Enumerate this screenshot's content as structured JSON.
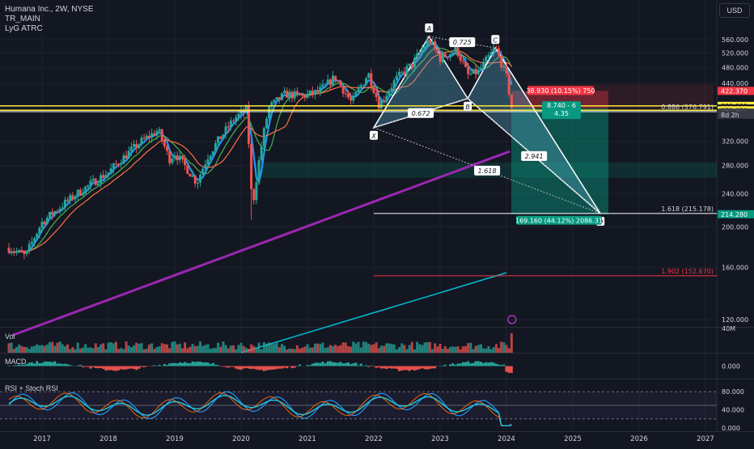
{
  "header": {
    "symbol_line": "Humana Inc., 2W, NYSE",
    "indicator_1": "TR_MAIN",
    "indicator_2": "LyG ATRC",
    "currency": "USD"
  },
  "panes": {
    "volume_label": "Vol",
    "macd_label": "MACD",
    "rsi_label": "RSI + Stoch RSI"
  },
  "colors": {
    "background": "#131722",
    "grid": "#1e222d",
    "candle_up": "#26a69a",
    "candle_down": "#ef5350",
    "ema_fast": "#2196f3",
    "ema_mid": "#4caf50",
    "ema_slow": "#ff7043",
    "ma_long": "#9c27b0",
    "ma_very_long": "#00bcd4",
    "pattern_fill": "#5aa8c8",
    "level_yellow": "#ffeb3b",
    "stop_red": "#f23645",
    "target_green": "#089981"
  },
  "chart_data": {
    "type": "candlestick",
    "title": "Humana Inc., 2W, NYSE",
    "x_axis": {
      "type": "date",
      "tick_labels": [
        "2017",
        "2018",
        "2019",
        "2020",
        "2021",
        "2022",
        "2023",
        "2024",
        "2025",
        "2026",
        "2027"
      ],
      "range": [
        "2016-07",
        "2027-02"
      ]
    },
    "y_axis": {
      "scale": "log",
      "range": [
        110,
        620
      ],
      "tick_labels": [
        "120.000",
        "160.000",
        "200.000",
        "240.000",
        "280.000",
        "320.000",
        "440.000",
        "480.000",
        "520.000",
        "560.000"
      ],
      "tick_values": [
        120,
        160,
        200,
        240,
        280,
        320,
        440,
        480,
        520,
        560
      ]
    },
    "price_path": [
      {
        "date": "2016-07",
        "price": 178
      },
      {
        "date": "2016-10",
        "price": 170
      },
      {
        "date": "2017-01",
        "price": 205
      },
      {
        "date": "2017-07",
        "price": 238
      },
      {
        "date": "2018-01",
        "price": 270
      },
      {
        "date": "2018-07",
        "price": 320
      },
      {
        "date": "2018-10",
        "price": 340
      },
      {
        "date": "2018-12",
        "price": 290
      },
      {
        "date": "2019-01",
        "price": 300
      },
      {
        "date": "2019-05",
        "price": 255
      },
      {
        "date": "2019-07",
        "price": 295
      },
      {
        "date": "2019-12",
        "price": 365
      },
      {
        "date": "2020-02",
        "price": 380
      },
      {
        "date": "2020-03",
        "price": 218
      },
      {
        "date": "2020-06",
        "price": 385
      },
      {
        "date": "2020-09",
        "price": 415
      },
      {
        "date": "2020-12",
        "price": 410
      },
      {
        "date": "2021-03",
        "price": 420
      },
      {
        "date": "2021-06",
        "price": 455
      },
      {
        "date": "2021-09",
        "price": 395
      },
      {
        "date": "2021-12",
        "price": 465
      },
      {
        "date": "2022-02",
        "price": 390
      },
      {
        "date": "2022-05",
        "price": 450
      },
      {
        "date": "2022-08",
        "price": 490
      },
      {
        "date": "2022-11",
        "price": 560
      },
      {
        "date": "2023-01",
        "price": 505
      },
      {
        "date": "2023-04",
        "price": 530
      },
      {
        "date": "2023-06",
        "price": 460
      },
      {
        "date": "2023-08",
        "price": 470
      },
      {
        "date": "2023-11",
        "price": 535
      },
      {
        "date": "2024-01",
        "price": 455
      },
      {
        "date": "2024-02",
        "price": 380
      }
    ],
    "price_labels": [
      {
        "text": "422.370",
        "value": 422.37,
        "style": "red"
      },
      {
        "text": "389.000",
        "value": 389.0,
        "style": "yellow"
      },
      {
        "text": "383.440",
        "value": 383.44,
        "style": "plain"
      },
      {
        "text": "379.650",
        "value": 379.65,
        "style": "yellow"
      },
      {
        "text": "374.700",
        "value": 374.7,
        "style": "current"
      },
      {
        "text": "8d 2h",
        "value": 370.5,
        "style": "countdown"
      },
      {
        "text": "214.280",
        "value": 214.28,
        "style": "green"
      }
    ],
    "harmonic_pattern": {
      "points": [
        {
          "label": "X",
          "date": "2022-01",
          "price": 345
        },
        {
          "label": "A",
          "date": "2022-11",
          "price": 570
        },
        {
          "label": "B",
          "date": "2023-06",
          "price": 405
        },
        {
          "label": "C",
          "date": "2023-11",
          "price": 535
        },
        {
          "label": "D",
          "date": "2025-06",
          "price": 215
        }
      ],
      "ratios": [
        "0.725",
        "0.672",
        "2.941",
        "1.618"
      ]
    },
    "levels": [
      {
        "label": "0.886 (376.791)",
        "value": 376.791,
        "color": "white"
      },
      {
        "label": "1.618 (215.178)",
        "value": 215.178,
        "color": "white"
      },
      {
        "label": "1.902 (152.670)",
        "value": 152.67,
        "color": "red"
      },
      {
        "value": 389.0,
        "color": "yellow"
      },
      {
        "value": 379.65,
        "color": "yellow"
      }
    ],
    "position": {
      "entry": 383.44,
      "stop": 422.37,
      "target": 214.28,
      "stop_label": "38.930 (10.15%) 750",
      "ratio_label_1": "8.740 - 6",
      "ratio_label_2": "4.35",
      "target_label": "169.160 (44.12%) 2086.31"
    },
    "support_zone": {
      "low": 262,
      "high": 285
    },
    "volume_axis_label": "40M",
    "macd_axis_label": "0.000",
    "rsi_axis_labels": [
      "80.000",
      "40.000",
      "0.000"
    ]
  }
}
